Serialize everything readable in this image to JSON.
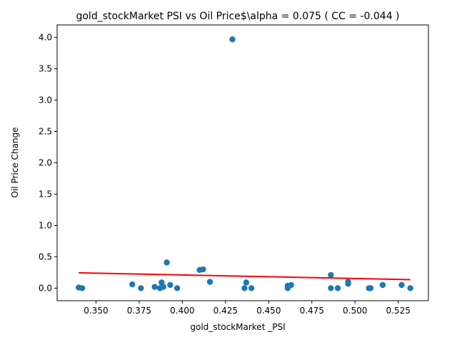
{
  "chart_data": {
    "type": "scatter",
    "title": "gold_stockMarket  PSI vs Oil Price$\\alpha = 0.075 ( CC = -0.044 )",
    "xlabel": "gold_stockMarket _PSI",
    "ylabel": "Oil Price Change",
    "xlim": [
      0.3275,
      0.5425
    ],
    "ylim": [
      -0.2,
      4.2
    ],
    "x_ticks": [
      0.35,
      0.375,
      0.4,
      0.425,
      0.45,
      0.475,
      0.5,
      0.525
    ],
    "x_tick_labels": [
      "0.350",
      "0.375",
      "0.400",
      "0.425",
      "0.450",
      "0.475",
      "0.500",
      "0.525"
    ],
    "y_ticks": [
      0.0,
      0.5,
      1.0,
      1.5,
      2.0,
      2.5,
      3.0,
      3.5,
      4.0
    ],
    "y_tick_labels": [
      "0.0",
      "0.5",
      "1.0",
      "1.5",
      "2.0",
      "2.5",
      "3.0",
      "3.5",
      "4.0"
    ],
    "grid": false,
    "legend": false,
    "series": [
      {
        "kind": "points",
        "color": "#1f77b4",
        "points": [
          {
            "x": 0.34,
            "y": 0.01
          },
          {
            "x": 0.342,
            "y": 0.0
          },
          {
            "x": 0.371,
            "y": 0.06
          },
          {
            "x": 0.376,
            "y": 0.0
          },
          {
            "x": 0.384,
            "y": 0.02
          },
          {
            "x": 0.387,
            "y": 0.0
          },
          {
            "x": 0.388,
            "y": 0.09
          },
          {
            "x": 0.389,
            "y": 0.02
          },
          {
            "x": 0.391,
            "y": 0.41
          },
          {
            "x": 0.393,
            "y": 0.05
          },
          {
            "x": 0.397,
            "y": 0.0
          },
          {
            "x": 0.41,
            "y": 0.29
          },
          {
            "x": 0.412,
            "y": 0.3
          },
          {
            "x": 0.416,
            "y": 0.1
          },
          {
            "x": 0.429,
            "y": 3.97
          },
          {
            "x": 0.436,
            "y": 0.0
          },
          {
            "x": 0.437,
            "y": 0.09
          },
          {
            "x": 0.44,
            "y": 0.0
          },
          {
            "x": 0.461,
            "y": 0.04
          },
          {
            "x": 0.461,
            "y": 0.0
          },
          {
            "x": 0.463,
            "y": 0.05
          },
          {
            "x": 0.486,
            "y": 0.21
          },
          {
            "x": 0.486,
            "y": 0.0
          },
          {
            "x": 0.49,
            "y": 0.0
          },
          {
            "x": 0.496,
            "y": 0.1
          },
          {
            "x": 0.496,
            "y": 0.07
          },
          {
            "x": 0.508,
            "y": 0.0
          },
          {
            "x": 0.509,
            "y": 0.0
          },
          {
            "x": 0.516,
            "y": 0.05
          },
          {
            "x": 0.527,
            "y": 0.05
          },
          {
            "x": 0.532,
            "y": 0.0
          }
        ]
      },
      {
        "kind": "fit-line",
        "color": "#ff0000",
        "points": [
          {
            "x": 0.34,
            "y": 0.245
          },
          {
            "x": 0.532,
            "y": 0.135
          }
        ]
      }
    ]
  }
}
